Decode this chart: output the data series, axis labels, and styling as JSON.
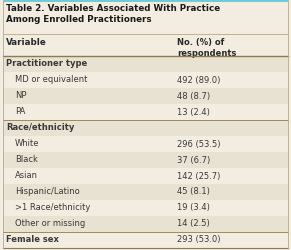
{
  "title_line1": "Table 2. Variables Associated With Practice",
  "title_line2": "Among Enrolled Practitioners",
  "col1_header": "Variable",
  "col2_header": "No. (%) of\nrespondents",
  "rows": [
    {
      "label": "Practitioner type",
      "value": "",
      "indent": false,
      "section_header": true
    },
    {
      "label": "MD or equivalent",
      "value": "492 (89.0)",
      "indent": true,
      "section_header": false
    },
    {
      "label": "NP",
      "value": "48 (8.7)",
      "indent": true,
      "section_header": false
    },
    {
      "label": "PA",
      "value": "13 (2.4)",
      "indent": true,
      "section_header": false
    },
    {
      "label": "Race/ethnicity",
      "value": "",
      "indent": false,
      "section_header": true
    },
    {
      "label": "White",
      "value": "296 (53.5)",
      "indent": true,
      "section_header": false
    },
    {
      "label": "Black",
      "value": "37 (6.7)",
      "indent": true,
      "section_header": false
    },
    {
      "label": "Asian",
      "value": "142 (25.7)",
      "indent": true,
      "section_header": false
    },
    {
      "label": "Hispanic/Latino",
      "value": "45 (8.1)",
      "indent": true,
      "section_header": false
    },
    {
      "label": ">1 Race/ethnicity",
      "value": "19 (3.4)",
      "indent": true,
      "section_header": false
    },
    {
      "label": "Other or missing",
      "value": "14 (2.5)",
      "indent": true,
      "section_header": false
    },
    {
      "label": "Female sex",
      "value": "293 (53.0)",
      "indent": false,
      "section_header": true
    }
  ],
  "top_border_color": "#6ecad6",
  "section_border_color": "#b8a88a",
  "bg_color": "#f2ede0",
  "stripe_color": "#e8e2d2",
  "title_text_color": "#1a1a1a",
  "body_text_color": "#3a3a3a",
  "header_text_color": "#2a2a2a",
  "section_header_bg": "#e8e2d2"
}
